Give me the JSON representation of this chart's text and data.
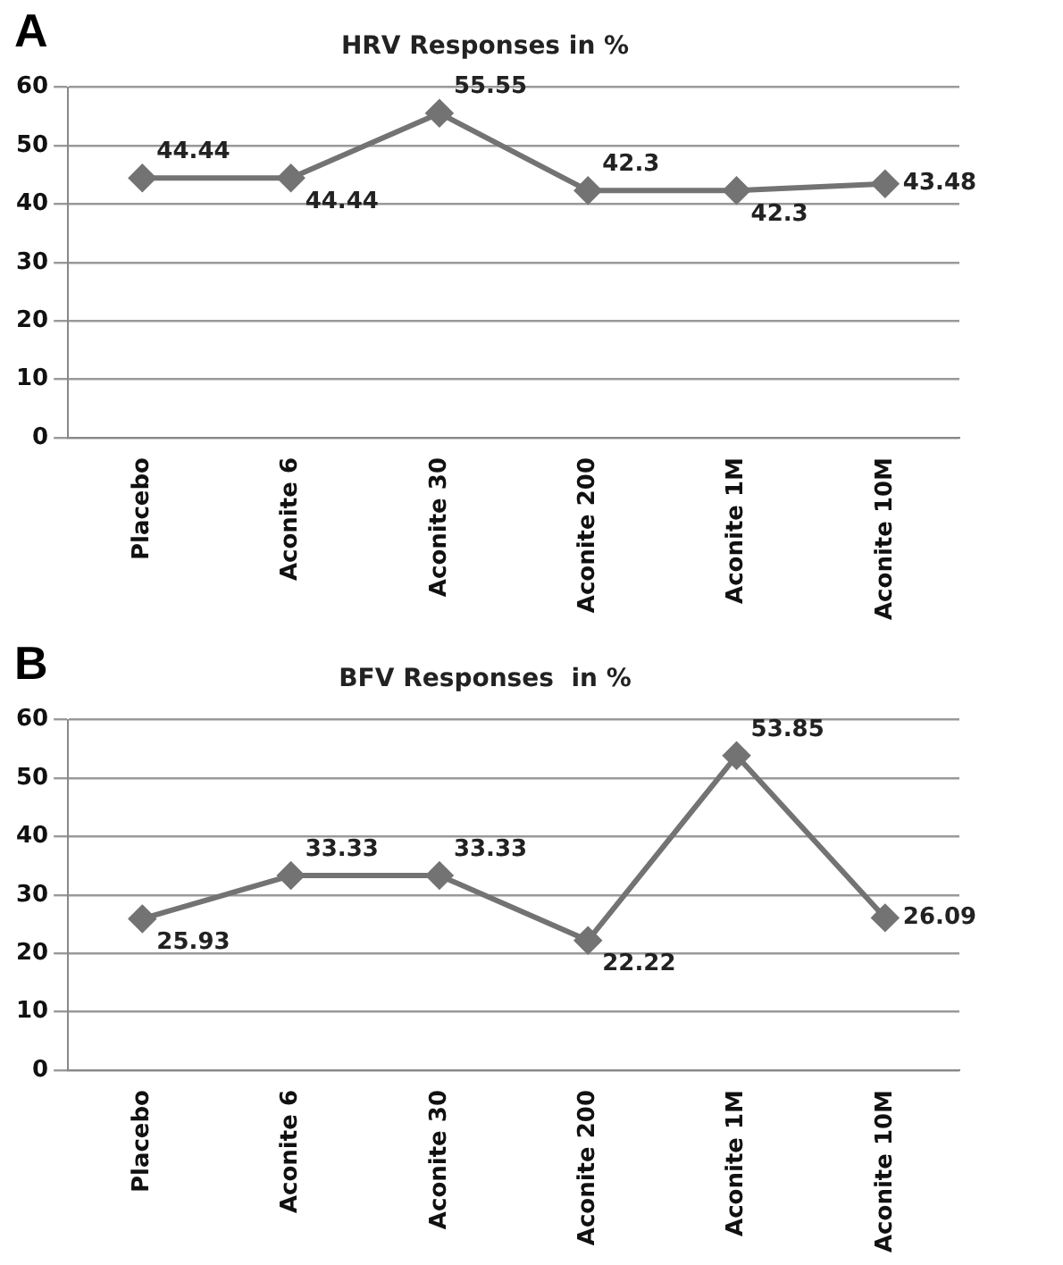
{
  "chart_data": [
    {
      "type": "line",
      "title": "HRV Responses in %",
      "annotations": [
        "A"
      ],
      "categories": [
        "Placebo",
        "Aconite 6",
        "Aconite 30",
        "Aconite 200",
        "Aconite 1M",
        "Aconite 10M"
      ],
      "series": [
        {
          "color": "#737373",
          "values": [
            44.44,
            44.44,
            55.55,
            42.3,
            42.3,
            43.48
          ]
        }
      ],
      "ylim": [
        0,
        60
      ],
      "yticks": [
        0,
        10,
        20,
        30,
        40,
        50,
        60
      ],
      "grid": "y",
      "legend": false,
      "marker": "diamond",
      "line_style": "solid",
      "data_labels": true
    },
    {
      "type": "line",
      "title": "BFV Responses  in %",
      "annotations": [
        "B"
      ],
      "categories": [
        "Placebo",
        "Aconite 6",
        "Aconite 30",
        "Aconite 200",
        "Aconite 1M",
        "Aconite 10M"
      ],
      "series": [
        {
          "color": "#737373",
          "values": [
            25.93,
            33.33,
            33.33,
            22.22,
            53.85,
            26.09
          ]
        }
      ],
      "ylim": [
        0,
        60
      ],
      "yticks": [
        0,
        10,
        20,
        30,
        40,
        50,
        60
      ],
      "grid": "y",
      "legend": false,
      "marker": "diamond",
      "line_style": "solid",
      "data_labels": true
    }
  ]
}
